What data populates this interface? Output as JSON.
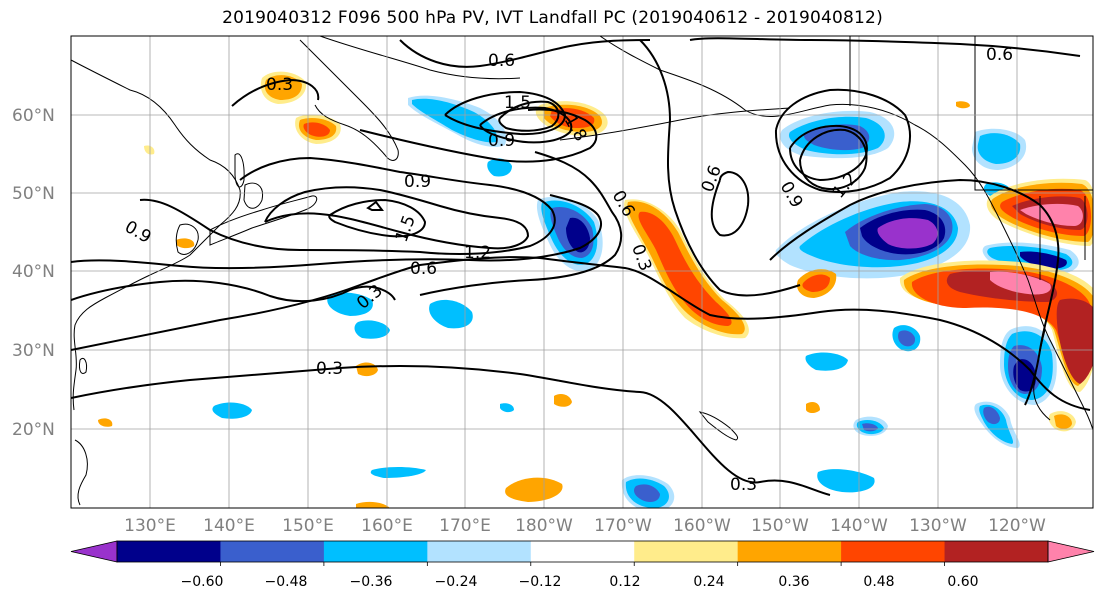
{
  "title": "2019040312 F096 500 hPa PV, IVT Landfall PC (2019040612 - 2019040812)",
  "latitude_labels": [
    "60°N",
    "50°N",
    "40°N",
    "30°N",
    "20°N"
  ],
  "longitude_labels": [
    "130°E",
    "140°E",
    "150°E",
    "160°E",
    "170°E",
    "180°W",
    "170°W",
    "160°W",
    "150°W",
    "140°W",
    "130°W",
    "120°W"
  ],
  "colorbar": {
    "colors": [
      "#9932CC",
      "#00008B",
      "#3A5FCD",
      "#00BFFF",
      "#B2E2FF",
      "#FFFFFF",
      "#FFEC8B",
      "#FFA500",
      "#FF4500",
      "#B22222",
      "#FF82AB"
    ],
    "tick_labels": [
      "−0.60",
      "−0.48",
      "−0.36",
      "−0.24",
      "−0.12",
      "0.12",
      "0.24",
      "0.36",
      "0.48",
      "0.60"
    ]
  },
  "contour_labels": [
    "0.3",
    "0.6",
    "0.9",
    "1.2",
    "1.5",
    "1.8"
  ],
  "contour_color": "#000000",
  "coastline_color": "#000000",
  "grid_color": "#A0A0A0"
}
